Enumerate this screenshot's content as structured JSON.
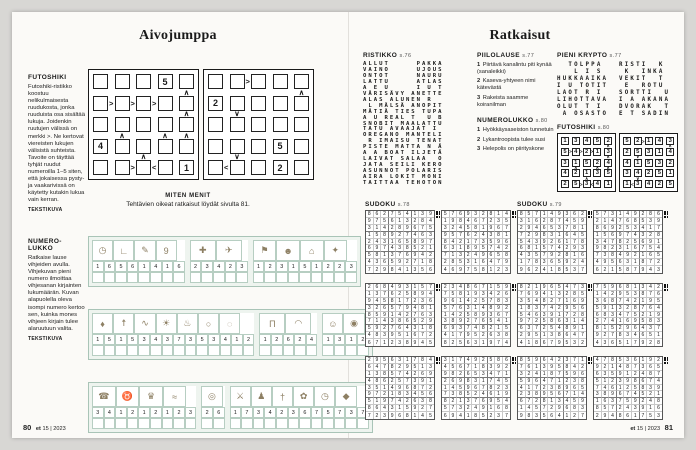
{
  "page_left": {
    "title": "Aivojumppa",
    "page_number": "80",
    "footer_brand": "et",
    "footer_issue": "15 | 2023",
    "futoshiki": {
      "heading": "FUTOSHIKI",
      "description": "Futoshiki-ristikko koostuu nelikulmaisesta ruudukosta, jonka ruuduista osa sisältää lukuja. Joidenkin ruutujen välissä on merkki >. Ne kertovat viereisten lukujen välisistä suhteista. Tavoite on täyttää tyhjät ruudut numeroilla 1–5 siten, että jokaisessa pysty- ja vaakarivissä on käytetty kutakin lukua vain kerran.",
      "credit": "TEKSTIKUVA",
      "grids": [
        {
          "cells": [
            [
              "",
              "",
              "",
              "5",
              ""
            ],
            [
              "",
              "",
              "",
              "",
              ""
            ],
            [
              "",
              "",
              "",
              "",
              ""
            ],
            [
              "4",
              "",
              "",
              "",
              ""
            ],
            [
              "",
              "",
              "",
              "",
              "1"
            ]
          ],
          "h": [
            [
              "",
              "",
              "",
              ""
            ],
            [
              ">",
              ">",
              ">",
              ""
            ],
            [
              "",
              "",
              "",
              ""
            ],
            [
              "",
              "",
              "",
              ""
            ],
            [
              "",
              ">",
              "<",
              ""
            ]
          ],
          "v": [
            [
              "",
              "",
              "",
              "",
              "^"
            ],
            [
              "",
              "",
              "",
              "",
              "^"
            ],
            [
              "",
              "^",
              "",
              "^",
              "^"
            ],
            [
              "",
              "",
              "^",
              "",
              ""
            ]
          ]
        },
        {
          "cells": [
            [
              "",
              "",
              "",
              "",
              ""
            ],
            [
              "2",
              "",
              "",
              "",
              ""
            ],
            [
              "",
              "",
              "",
              "",
              ""
            ],
            [
              "",
              "",
              "",
              "5",
              ""
            ],
            [
              "",
              "",
              "",
              "2",
              ""
            ]
          ],
          "h": [
            [
              "",
              ">",
              "",
              ""
            ],
            [
              "",
              "",
              "",
              ""
            ],
            [
              "",
              "",
              "",
              ""
            ],
            [
              "",
              "",
              "",
              ""
            ],
            [
              "<",
              "",
              "",
              ""
            ]
          ],
          "v": [
            [
              "",
              "",
              "",
              "",
              "^"
            ],
            [
              "",
              "v",
              "",
              "",
              ""
            ],
            [
              "",
              "",
              "",
              "",
              ""
            ],
            [
              "",
              "v",
              "",
              "",
              ""
            ]
          ]
        }
      ]
    },
    "miten_menit": {
      "heading": "MITEN MENIT",
      "text": "Tehtävien oikeat ratkaisut löydät sivulta 81."
    },
    "numerolukko": {
      "heading": "NUMERO-\nLUKKO",
      "description": "Ratkaise lause vihjeiden avulla. Vihjekuvan pieni numero ilmoittaa vihjesanan kirjainten lukumäärän. Kuvan alapuolella oleva isompi numero kertoo sen, kuinka mones vihjeen kirjain tulee alaruutuun valita.",
      "credit": "TEKSTIKUVA",
      "rows": [
        {
          "groups": [
            {
              "icons": [
                "alarm-clock",
                "boot",
                "pencil",
                "number-nine"
              ],
              "numbers": [
                1,
                6,
                5,
                6,
                1,
                4,
                1,
                6
              ]
            },
            {
              "icons": [
                "cross",
                "airplane"
              ],
              "numbers": [
                2,
                3,
                4,
                2,
                3
              ]
            },
            {
              "icons": [
                "flag",
                "bear",
                "igloo",
                "bird"
              ],
              "numbers": [
                1,
                2,
                3,
                1,
                5,
                1,
                2,
                2,
                3
              ]
            }
          ]
        },
        {
          "groups": [
            {
              "icons": [
                "lantern",
                "scarecrow",
                "squirrel",
                "sun",
                "beer-mug",
                "balloon",
                "watering-can"
              ],
              "numbers": [
                1,
                5,
                1,
                5,
                3,
                4,
                3,
                7,
                3,
                5,
                3,
                4,
                1,
                2
              ]
            },
            {
              "icons": [
                "gate",
                "seashell"
              ],
              "numbers": [
                1,
                2,
                6,
                2,
                4
              ]
            },
            {
              "icons": [
                "face",
                "pig"
              ],
              "numbers": [
                1,
                3,
                1,
                2
              ]
            }
          ]
        },
        {
          "groups": [
            {
              "icons": [
                "mobile-phone",
                "cow",
                "trophy",
                "lizard"
              ],
              "numbers": [
                3,
                4,
                1,
                2,
                1,
                2,
                1,
                2,
                3
              ]
            },
            {
              "icons": [
                "medal"
              ],
              "numbers": [
                2,
                6
              ]
            },
            {
              "icons": [
                "knife",
                "mouse",
                "sword",
                "clover",
                "clock",
                "sack"
              ],
              "numbers": [
                1,
                7,
                3,
                4,
                2,
                3,
                6,
                7,
                5,
                7,
                3,
                7
              ]
            }
          ]
        }
      ]
    },
    "icon_glyphs": {
      "alarm-clock": "◷",
      "boot": "∟",
      "pencil": "✎",
      "number-nine": "9",
      "cross": "✚",
      "airplane": "✈",
      "flag": "⚑",
      "bear": "☻",
      "igloo": "⌂",
      "bird": "✦",
      "lantern": "♦",
      "scarecrow": "☨",
      "squirrel": "∿",
      "sun": "☀",
      "beer-mug": "♨",
      "balloon": "○",
      "watering-can": "◌",
      "gate": "Π",
      "seashell": "◠",
      "face": "☺",
      "pig": "◉",
      "mobile-phone": "☎",
      "cow": "♉",
      "trophy": "♛",
      "lizard": "≈",
      "medal": "◎",
      "knife": "⚔",
      "mouse": "♟",
      "sword": "†",
      "clover": "✿",
      "clock": "◷",
      "sack": "◆"
    }
  },
  "page_right": {
    "title": "Ratkaisut",
    "page_number": "81",
    "footer_brand": "et",
    "footer_issue": "15 | 2023",
    "ristikko": {
      "heading": "RISTIKKO",
      "page_ref": "s.76",
      "rows": [
        "ALLUT     PAKKA",
        "VAINO     UJOUS",
        "ONTOT     NAURU",
        "LATTU     ATLAS",
        "A E U     I U T",
        "VÄRISÄVY ANETTE",
        "ALAS ALUNEN R",
        " L MÄLSÄ ANOPIT",
        "MÄTIÄ TIES TUPA",
        "A U REAL T  U B",
        "SNOBIT MAALATTU",
        "TATU AVAAJAT I",
        "OREGANO MANTELI",
        " R IMAISU TENAT",
        "PISTE MATTA N Ä",
        "A A BOAT ILJETÄ",
        "LAIVAT SALAA  O",
        "JATA SEILI KERO",
        "ASUNNOT POLARIS",
        "AIRA LOKIT MONI",
        "TAITTAA TEHOTON"
      ]
    },
    "piilolause": {
      "heading": "PIILOLAUSE",
      "page_ref": "s.77",
      "items": [
        {
          "n": "1",
          "t": "Piirtävä kanalintu piti kynää (sanaleikki)"
        },
        {
          "n": "2",
          "t": "Kaseva-yhtyeen nimi kätevästä"
        },
        {
          "n": "3",
          "t": "Rakeista saamme koiranilman"
        }
      ]
    },
    "pieni_krypto": {
      "heading": "PIENI KRYPTO",
      "page_ref": "s.77",
      "grids": [
        {
          "rows": [
            "  TOLPPA ",
            "   L I S ",
            "HUKKAAIKA",
            "I U TOTIT",
            "LAOT R I ",
            "LIHOTTAVA",
            "OLUT T I ",
            " A OSASTO"
          ]
        },
        {
          "rows": [
            "RISTI  K ",
            " K  INKA ",
            "VEKIT  T ",
            " E  ROTU ",
            "SORTTI  U",
            "I A AKANA",
            "DVORAK  T",
            "E T SADIN"
          ]
        }
      ]
    },
    "numerolukko_ratkaisu": {
      "heading": "NUMEROLUKKO",
      "page_ref": "s.80",
      "items": [
        {
          "n": "1",
          "t": "Hyökkäysaseiston tunnetuin"
        },
        {
          "n": "2",
          "t": "Lykantroopista tulee susi"
        },
        {
          "n": "3",
          "t": "Helepolis on piirityskone"
        }
      ]
    },
    "futoshiki_ratkaisu": {
      "heading": "FUTOSHIKI",
      "page_ref": "s.80",
      "grids": [
        {
          "cells": [
            [
              "1",
              "3",
              "4",
              "5",
              "2"
            ],
            [
              "5",
              "4",
              "2",
              "1",
              "3"
            ],
            [
              "3",
              "1",
              "5",
              "2",
              "4"
            ],
            [
              "4",
              "2",
              "1",
              "3",
              "5"
            ],
            [
              "2",
              "5",
              "3",
              "4",
              "1"
            ]
          ],
          "h": [
            [
              "",
              "",
              "",
              ""
            ],
            [
              ">",
              ">",
              ">",
              ""
            ],
            [
              "",
              "",
              "",
              ""
            ],
            [
              "",
              "",
              "",
              ""
            ],
            [
              "",
              ">",
              "<",
              ""
            ]
          ],
          "v": [
            [
              "",
              "",
              "",
              "",
              "^"
            ],
            [
              "",
              "",
              "",
              "",
              "^"
            ],
            [
              "",
              "^",
              "",
              "^",
              "^"
            ],
            [
              "",
              "",
              "^",
              "",
              ""
            ]
          ]
        },
        {
          "cells": [
            [
              "5",
              "2",
              "1",
              "4",
              "3"
            ],
            [
              "2",
              "5",
              "3",
              "1",
              "4"
            ],
            [
              "4",
              "1",
              "5",
              "3",
              "2"
            ],
            [
              "3",
              "4",
              "2",
              "5",
              "1"
            ],
            [
              "1",
              "3",
              "4",
              "2",
              "5"
            ]
          ],
          "h": [
            [
              "",
              ">",
              "",
              ""
            ],
            [
              "",
              "",
              "",
              ""
            ],
            [
              "",
              "",
              "",
              ""
            ],
            [
              "",
              "",
              "",
              ""
            ],
            [
              "<",
              "",
              "",
              ""
            ]
          ],
          "v": [
            [
              "",
              "",
              "",
              "",
              "^"
            ],
            [
              "",
              "v",
              "",
              "",
              ""
            ],
            [
              "",
              "",
              "",
              "",
              ""
            ],
            [
              "",
              "v",
              "",
              "",
              ""
            ]
          ]
        }
      ]
    },
    "sudoku_sections": [
      {
        "heading": "SUDOKU",
        "page_ref": "s.78"
      },
      {
        "heading": "SUDOKU",
        "page_ref": "s.79"
      }
    ],
    "sudokus": [
      {
        "rows": [
          "862754139",
          "975613284",
          "314289675",
          "158927463",
          "243165897",
          "697438521",
          "581376942",
          "436592718",
          "729841356"
        ]
      },
      {
        "rows": [
          "576932814",
          "198467235",
          "324581967",
          "957624381",
          "842173596",
          "631895742",
          "713249658",
          "285316479",
          "469758123"
        ]
      },
      {
        "rows": [
          "857149362",
          "316287459",
          "294653781",
          "729831645",
          "543926178",
          "681574293",
          "435792816",
          "178365924",
          "962418537"
        ]
      },
      {
        "rows": [
          "573149286",
          "214768539",
          "869253417",
          "156974328",
          "347825691",
          "982316754",
          "738492165",
          "495631872",
          "621587943"
        ]
      },
      {
        "rows": [
          "268493157",
          "137625894",
          "945817236",
          "326579481",
          "859142763",
          "714386529",
          "592764318",
          "483951672",
          "671238945"
        ]
      },
      {
        "rows": [
          "234867159",
          "758193426",
          "961425783",
          "576314892",
          "142589367",
          "389276541",
          "693748215",
          "417952638",
          "825631974"
        ]
      },
      {
        "rows": [
          "821965473",
          "769413285",
          "354827169",
          "183742956",
          "546391728",
          "972586314",
          "637254891",
          "295138647",
          "418679532"
        ]
      },
      {
        "rows": [
          "759681342",
          "142953876",
          "368742195",
          "591328764",
          "683475219",
          "274169583",
          "815296437",
          "927834651",
          "436517928"
        ]
      },
      {
        "rows": [
          "295631784",
          "647829513",
          "138574269",
          "486257391",
          "351496872",
          "972183456",
          "519742638",
          "864315927",
          "723968145"
        ]
      },
      {
        "rows": [
          "317492586",
          "456718392",
          "982653471",
          "269831745",
          "145967823",
          "738524619",
          "821376954",
          "573249168",
          "694185237"
        ]
      },
      {
        "rows": [
          "859642371",
          "761395842",
          "324187596",
          "596471238",
          "417238965",
          "238956714",
          "672813459",
          "145729683",
          "983564127"
        ]
      },
      {
        "rows": [
          "478536192",
          "921487365",
          "635912487",
          "512398674",
          "746125839",
          "389674521",
          "163759248",
          "857243916",
          "294861753"
        ]
      }
    ]
  }
}
